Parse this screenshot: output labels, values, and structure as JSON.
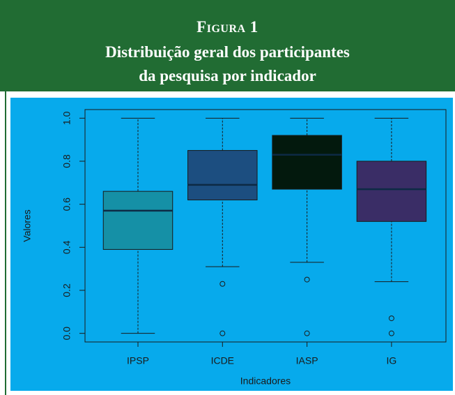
{
  "figure_label": "Figura 1",
  "title_lines": [
    "Distribuição geral dos participantes",
    "da pesquisa por indicador"
  ],
  "chart_data": {
    "type": "box",
    "xlabel": "Indicadores",
    "ylabel": "Valores",
    "categories": [
      "IPSP",
      "ICDE",
      "IASP",
      "IG"
    ],
    "boxes": [
      {
        "min": 0,
        "q1": 0.39,
        "median": 0.57,
        "q3": 0.66,
        "max": 1.0,
        "outliers": [],
        "color": "#1590a6"
      },
      {
        "min": 0.31,
        "q1": 0.62,
        "median": 0.69,
        "q3": 0.85,
        "max": 1.0,
        "outliers": [
          0.23,
          0
        ],
        "color": "#1c4e80"
      },
      {
        "min": 0.33,
        "q1": 0.67,
        "median": 0.83,
        "q3": 0.92,
        "max": 1.0,
        "outliers": [
          0.25,
          0
        ],
        "color": "#03190d"
      },
      {
        "min": 0.24,
        "q1": 0.52,
        "median": 0.67,
        "q3": 0.8,
        "max": 1.0,
        "outliers": [
          0.07,
          0
        ],
        "color": "#3a2d66"
      }
    ],
    "ylim": [
      -0.04,
      1.04
    ],
    "yticks": [
      {
        "value": 0,
        "label": "0.0"
      },
      0.2,
      0.4,
      0.6,
      0.8,
      {
        "value": 1,
        "label": "1.0"
      }
    ],
    "background": "#07aaec"
  }
}
